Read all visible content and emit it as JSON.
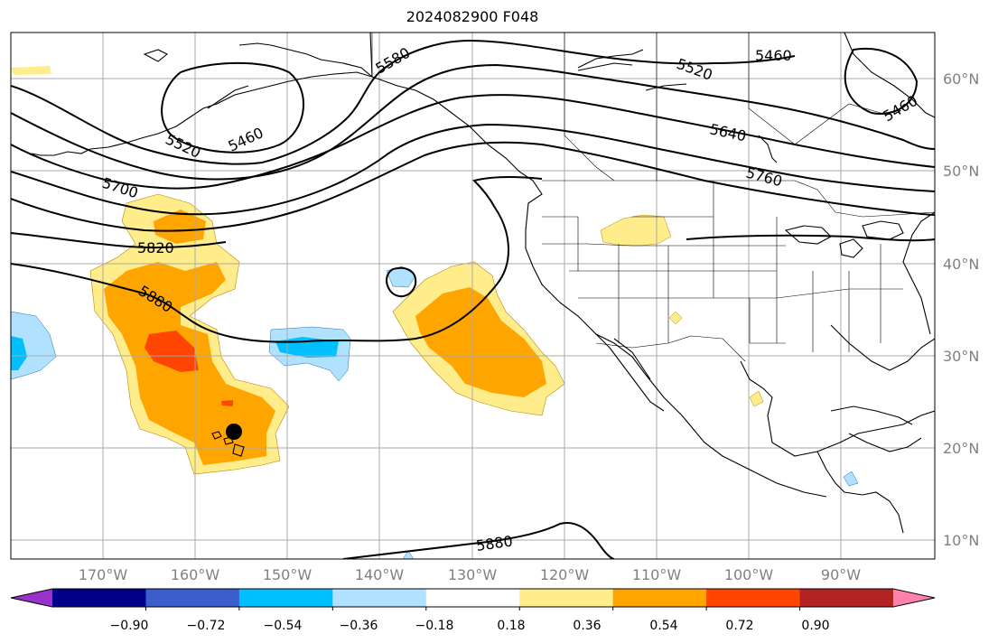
{
  "title": "2024082900 F048",
  "lat_labels": [
    "60°N",
    "50°N",
    "40°N",
    "30°N",
    "20°N",
    "10°N"
  ],
  "lon_labels": [
    "170°W",
    "160°W",
    "150°W",
    "140°W",
    "130°W",
    "120°W",
    "110°W",
    "100°W",
    "90°W"
  ],
  "contour_labels": [
    "5460",
    "5460",
    "5520",
    "5520",
    "5580",
    "5640",
    "5700",
    "5760",
    "5820",
    "5880",
    "5880",
    "5460"
  ],
  "colorbar": {
    "ticks": [
      "−0.90",
      "−0.72",
      "−0.54",
      "−0.36",
      "−0.18",
      "0.18",
      "0.36",
      "0.54",
      "0.72",
      "0.90"
    ],
    "colors": [
      "#9932cc",
      "#00008b",
      "#3a5fcd",
      "#00bfff",
      "#b0e2ff",
      "#ffffff",
      "#ffec8b",
      "#ffa500",
      "#ff4500",
      "#b22222",
      "#ff82ab"
    ]
  },
  "marker": "storm-center-dot"
}
